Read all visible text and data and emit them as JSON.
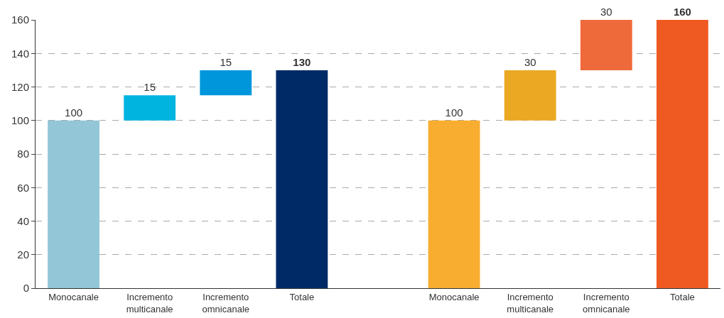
{
  "chart_data": {
    "type": "bar",
    "categories": [
      "Monocanale",
      "Incremento multicanale",
      "Incremento omnicanale",
      "Totale",
      null,
      "Monocanale",
      "Incremento multicanale",
      "Incremento omnicanale",
      "Totale"
    ],
    "values": [
      100,
      15,
      15,
      130,
      null,
      100,
      30,
      30,
      160
    ],
    "base": [
      0,
      100,
      115,
      0,
      null,
      0,
      100,
      130,
      0
    ],
    "colors": [
      "#93c6d6",
      "#00b4e0",
      "#0096dc",
      "#002a66",
      "#ffffff",
      "#f9ad30",
      "#eba822",
      "#ef6a3a",
      "#ef5a22"
    ],
    "value_labels": [
      "100",
      "15",
      "15",
      "130",
      null,
      "100",
      "30",
      "30",
      "160"
    ],
    "ylim": [
      0,
      160
    ],
    "yticks": [
      0,
      20,
      40,
      60,
      80,
      100,
      120,
      140,
      160
    ],
    "grid": "y"
  }
}
